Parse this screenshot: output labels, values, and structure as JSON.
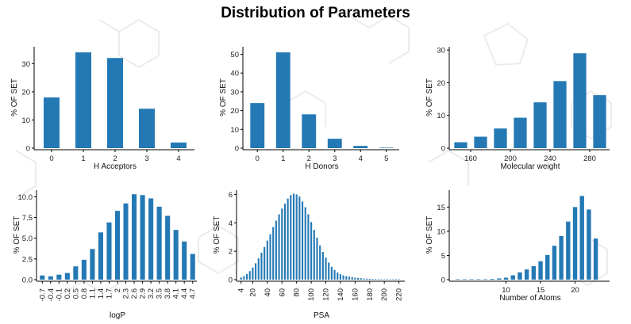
{
  "page": {
    "title": "Distribution of Parameters"
  },
  "colors": {
    "bar": "#2479b5",
    "axis": "#000000",
    "background_molecules": "#ececec"
  },
  "chart_data": [
    {
      "type": "bar",
      "xlabel": "H Acceptors",
      "ylabel": "% OF SET",
      "categories": [
        "0",
        "1",
        "2",
        "3",
        "4"
      ],
      "values": [
        18,
        34,
        32,
        14,
        2
      ],
      "ylim": [
        0,
        36
      ],
      "yticks": [
        0,
        10,
        20,
        30
      ],
      "xtick_labels": [
        "0",
        "1",
        "2",
        "3",
        "4"
      ],
      "grid": false
    },
    {
      "type": "bar",
      "xlabel": "H Donors",
      "ylabel": "% OF SET",
      "categories": [
        "0",
        "1",
        "2",
        "3",
        "4",
        "5"
      ],
      "values": [
        24,
        51,
        18,
        5,
        1.2,
        0.2
      ],
      "ylim": [
        0,
        54
      ],
      "yticks": [
        0,
        10,
        20,
        30,
        40,
        50
      ],
      "xtick_labels": [
        "0",
        "1",
        "2",
        "3",
        "4",
        "5"
      ],
      "grid": false
    },
    {
      "type": "bar",
      "xlabel": "Molecular weight",
      "ylabel": "% OF SET",
      "x": [
        150,
        170,
        190,
        210,
        230,
        250,
        270,
        290
      ],
      "values": [
        1.8,
        3.5,
        6,
        9.3,
        14,
        20.5,
        29,
        16.2
      ],
      "xlim": [
        140,
        300
      ],
      "ylim": [
        0,
        31
      ],
      "yticks": [
        0,
        10,
        20,
        30
      ],
      "xticks": [
        160,
        200,
        240,
        280
      ],
      "grid": false
    },
    {
      "type": "bar",
      "xlabel": "logP",
      "ylabel": "% OF SET",
      "categories": [
        "-0.7",
        "-0.4",
        "-0.1",
        "0.2",
        "0.5",
        "0.8",
        "1.1",
        "1.4",
        "1.7",
        "2.0",
        "2.3",
        "2.6",
        "2.9",
        "3.2",
        "3.5",
        "3.8",
        "4.1",
        "4.4",
        "4.7"
      ],
      "values": [
        0.5,
        0.4,
        0.6,
        0.8,
        1.6,
        2.4,
        3.7,
        5.7,
        6.9,
        8.3,
        9.2,
        10.3,
        10.2,
        9.8,
        8.8,
        7.7,
        6.0,
        4.6,
        3.1
      ],
      "ylim": [
        0,
        10.8
      ],
      "yticks": [
        0.0,
        2.5,
        5.0,
        7.5,
        10.0
      ],
      "ytick_labels": [
        "0.0",
        "2.5",
        "5.0",
        "7.5",
        "10.0"
      ],
      "xtick_labels": [
        "-0.7",
        "-0.4",
        "-0.1",
        "0.2",
        "0.5",
        "0.8",
        "1.1",
        "1.4",
        "1.7",
        "2",
        "2.3",
        "2.6",
        "2.9",
        "3.2",
        "3.5",
        "3.8",
        "4.1",
        "4.4",
        "4.7"
      ],
      "grid": false
    },
    {
      "type": "bar",
      "xlabel": "PSA",
      "ylabel": "% OF SET",
      "x": [
        4,
        8,
        12,
        16,
        20,
        24,
        28,
        32,
        36,
        40,
        44,
        48,
        52,
        56,
        60,
        64,
        68,
        72,
        76,
        80,
        84,
        88,
        92,
        96,
        100,
        104,
        108,
        112,
        116,
        120,
        124,
        128,
        132,
        136,
        140,
        144,
        148,
        152,
        156,
        160,
        164,
        168,
        172,
        176,
        180,
        184,
        188,
        192,
        196,
        200,
        204,
        208,
        212,
        216,
        220
      ],
      "values": [
        0.15,
        0.25,
        0.4,
        0.6,
        0.85,
        1.15,
        1.5,
        1.9,
        2.3,
        2.75,
        3.2,
        3.7,
        4.15,
        4.6,
        5.0,
        5.35,
        5.7,
        5.95,
        6.05,
        6.0,
        5.85,
        5.5,
        5.1,
        4.6,
        4.05,
        3.5,
        2.95,
        2.4,
        1.95,
        1.55,
        1.2,
        0.9,
        0.68,
        0.5,
        0.38,
        0.3,
        0.24,
        0.2,
        0.17,
        0.14,
        0.12,
        0.1,
        0.08,
        0.07,
        0.06,
        0.05,
        0.04,
        0.035,
        0.03,
        0.025,
        0.02,
        0.015,
        0.012,
        0.01,
        0.008
      ],
      "xlim": [
        0,
        228
      ],
      "ylim": [
        0,
        6.3
      ],
      "yticks": [
        0,
        2,
        4,
        6
      ],
      "xticks": [
        4,
        20,
        40,
        60,
        80,
        100,
        120,
        140,
        160,
        180,
        200,
        220
      ],
      "grid": false
    },
    {
      "type": "bar",
      "xlabel": "Number of Atoms",
      "ylabel": "% OF SET",
      "x": [
        3,
        4,
        5,
        6,
        7,
        8,
        9,
        10,
        11,
        12,
        13,
        14,
        15,
        16,
        17,
        18,
        19,
        20,
        21,
        22,
        23
      ],
      "values": [
        0.02,
        0.03,
        0.04,
        0.06,
        0.1,
        0.15,
        0.25,
        0.4,
        0.9,
        1.5,
        2.1,
        2.8,
        3.8,
        5.1,
        7.0,
        9.0,
        12.0,
        15.0,
        17.3,
        14.5,
        8.5
      ],
      "xlim": [
        2,
        25
      ],
      "ylim": [
        0,
        18.5
      ],
      "yticks": [
        0,
        5,
        10,
        15
      ],
      "xticks": [
        10,
        15,
        20
      ],
      "grid": false
    }
  ]
}
